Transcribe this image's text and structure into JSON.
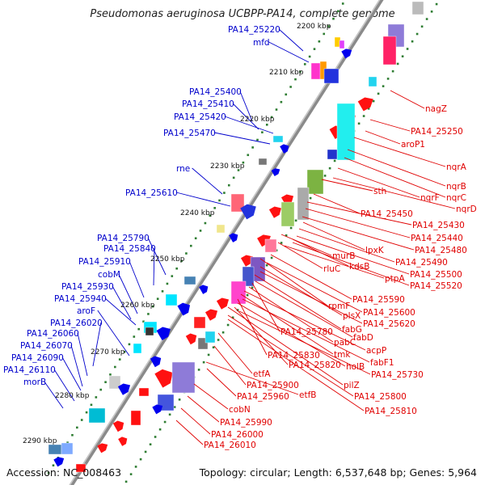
{
  "header": {
    "title": "Pseudomonas aeruginosa UCBPP-PA14, complete genome"
  },
  "footer": {
    "accession": "Accession: NC_008463",
    "summary": "Topology: circular; Length: 6,537,648 bp; Genes: 5,964"
  },
  "colors": {
    "plus_label": "#0000cc",
    "minus_label": "#e00000",
    "backbone": "#8a8a8a",
    "tick": "#2e7d32"
  },
  "kbp_ticks": [
    "2200 kbp",
    "2210 kbp",
    "2220 kbp",
    "2230 kbp",
    "2240 kbp",
    "2250 kbp",
    "2260 kbp",
    "2270 kbp",
    "2280 kbp",
    "2290 kbp"
  ],
  "plus_labels": [
    "PA14_25220",
    "mfd",
    "PA14_25400",
    "PA14_25410",
    "PA14_25420",
    "PA14_25470",
    "rne",
    "PA14_25610",
    "PA14_25790",
    "PA14_25840",
    "PA14_25910",
    "cobM",
    "PA14_25930",
    "PA14_25940",
    "aroF",
    "PA14_26020",
    "PA14_26060",
    "PA14_26070",
    "PA14_26090",
    "PA14_26110",
    "morB"
  ],
  "minus_labels": [
    "nagZ",
    "PA14_25250",
    "aroP1",
    "nqrA",
    "nqrB",
    "nqrC",
    "nqrF",
    "nqrD",
    "sth",
    "PA14_25450",
    "PA14_25430",
    "PA14_25440",
    "PA14_25480",
    "lpxK",
    "kdsB",
    "PA14_25490",
    "ptpA",
    "PA14_25500",
    "PA14_25520",
    "murB",
    "rluC",
    "PA14_25590",
    "rpmF",
    "plsX",
    "PA14_25600",
    "PA14_25620",
    "fabG",
    "fabD",
    "PA14_25780",
    "pabC",
    "acpP",
    "tmk",
    "fabF1",
    "PA14_25830",
    "holB",
    "PA14_25820",
    "PA14_25730",
    "pilZ",
    "etfA",
    "PA14_25800",
    "PA14_25900",
    "etfB",
    "PA14_25810",
    "PA14_25960",
    "cobN",
    "PA14_25990",
    "PA14_26000",
    "PA14_26010"
  ]
}
